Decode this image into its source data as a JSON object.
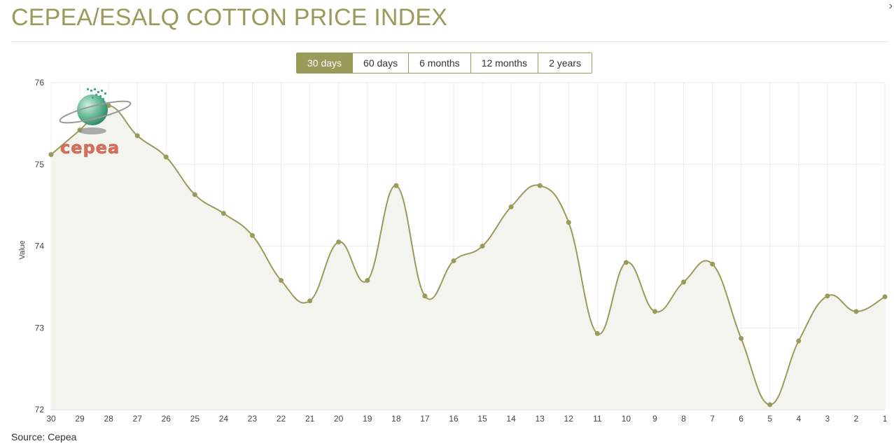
{
  "header": {
    "title": "CEPEA/ESALQ COTTON PRICE INDEX",
    "close_glyph": "›"
  },
  "range_buttons": [
    {
      "label": "30 days",
      "active": true
    },
    {
      "label": "60 days",
      "active": false
    },
    {
      "label": "6 months",
      "active": false
    },
    {
      "label": "12 months",
      "active": false
    },
    {
      "label": "2 years",
      "active": false
    }
  ],
  "logo": {
    "text": "cepea"
  },
  "footer": {
    "source": "Source: Cepea"
  },
  "colors": {
    "accent": "#9a9a5a",
    "fill": "#f4f4ee",
    "grid": "#ececec"
  },
  "chart_data": {
    "type": "line",
    "ylabel": "Value",
    "xlabel": "",
    "ylim": [
      72,
      76
    ],
    "yticks": [
      72,
      73,
      74,
      75,
      76
    ],
    "grid": true,
    "area_fill": true,
    "smooth": true,
    "categories": [
      "30",
      "29",
      "28",
      "27",
      "26",
      "25",
      "24",
      "23",
      "22",
      "21",
      "20",
      "19",
      "18",
      "17",
      "16",
      "15",
      "14",
      "13",
      "12",
      "11",
      "10",
      "9",
      "8",
      "7",
      "6",
      "5",
      "4",
      "3",
      "2",
      "1"
    ],
    "values": [
      75.12,
      75.42,
      75.72,
      75.35,
      75.09,
      74.63,
      74.4,
      74.13,
      73.58,
      73.33,
      74.05,
      73.58,
      74.74,
      73.39,
      73.82,
      74.0,
      74.48,
      74.74,
      74.29,
      72.93,
      73.8,
      73.2,
      73.56,
      73.78,
      72.87,
      72.06,
      72.84,
      73.39,
      73.2,
      73.38
    ]
  }
}
